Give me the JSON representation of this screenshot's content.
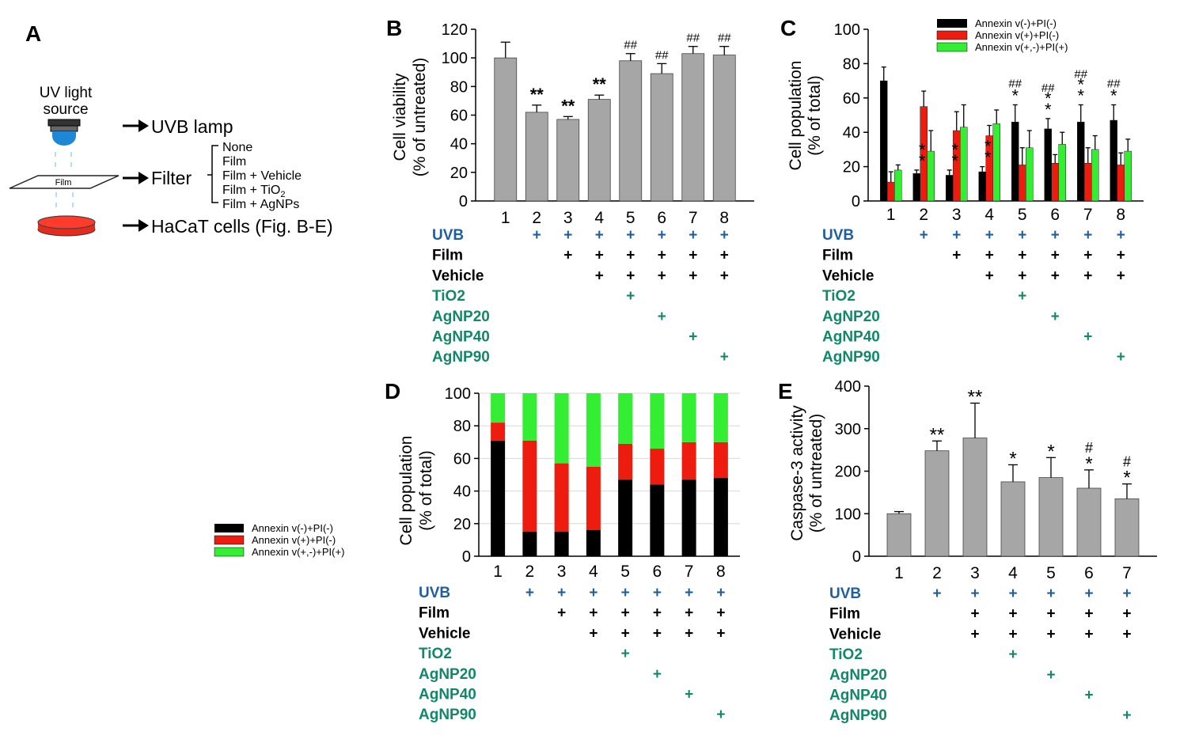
{
  "colors": {
    "gray_bar": "#a6a6a6",
    "black": "#000000",
    "red": "#ee1c0f",
    "green": "#33ee33",
    "uvb_blue": "#1f5fa0",
    "teal": "#12876a",
    "lamp_blue": "#1e88d6"
  },
  "panel_a": {
    "letter": "A",
    "uv_source_line1": "UV light",
    "uv_source_line2": "source",
    "uvb_lamp": "UVB lamp",
    "filter": "Filter",
    "film_label": "Film",
    "filter_options": [
      "None",
      "Film",
      "Film + Vehicle",
      "Film + TiO",
      "Film + AgNPs"
    ],
    "tio2_subscript": "2",
    "cells": "HaCaT cells (Fig. B-E)"
  },
  "legend_left": [
    "Annexin v(-)+PI(-)",
    "Annexin v(+)+PI(-)",
    "Annexin v(+,-)+PI(+)"
  ],
  "condition_table": {
    "row_labels": [
      "UVB",
      "Film",
      "Vehicle",
      "TiO2",
      "AgNP20",
      "AgNP40",
      "AgNP90"
    ],
    "row_colors": [
      "uvb",
      "black",
      "black",
      "teal",
      "teal",
      "teal",
      "teal"
    ],
    "plus_sign": "+",
    "matrix_8": [
      [
        0,
        1,
        1,
        1,
        1,
        1,
        1,
        1
      ],
      [
        0,
        0,
        1,
        1,
        1,
        1,
        1,
        1
      ],
      [
        0,
        0,
        0,
        1,
        1,
        1,
        1,
        1
      ],
      [
        0,
        0,
        0,
        0,
        1,
        0,
        0,
        0
      ],
      [
        0,
        0,
        0,
        0,
        0,
        1,
        0,
        0
      ],
      [
        0,
        0,
        0,
        0,
        0,
        0,
        1,
        0
      ],
      [
        0,
        0,
        0,
        0,
        0,
        0,
        0,
        1
      ]
    ],
    "matrix_7": [
      [
        0,
        1,
        1,
        1,
        1,
        1,
        1
      ],
      [
        0,
        0,
        1,
        1,
        1,
        1,
        1
      ],
      [
        0,
        0,
        1,
        1,
        1,
        1,
        1
      ],
      [
        0,
        0,
        0,
        1,
        0,
        0,
        0
      ],
      [
        0,
        0,
        0,
        0,
        1,
        0,
        0
      ],
      [
        0,
        0,
        0,
        0,
        0,
        1,
        0
      ],
      [
        0,
        0,
        0,
        0,
        0,
        0,
        1
      ]
    ]
  },
  "chart_data": [
    {
      "panel": "B",
      "type": "bar",
      "ylabel_line1": "Cell viability",
      "ylabel_line2": "(% of untreated)",
      "categories": [
        "1",
        "2",
        "3",
        "4",
        "5",
        "6",
        "7",
        "8"
      ],
      "values": [
        100,
        62,
        57,
        71,
        98,
        89,
        103,
        102
      ],
      "errors": [
        11,
        5,
        2,
        3,
        5,
        7,
        5,
        6
      ],
      "annotations": [
        "",
        "**",
        "**",
        "**",
        "##",
        "##",
        "##",
        "##"
      ],
      "ylim": [
        0,
        120
      ],
      "yticks": [
        0,
        20,
        40,
        60,
        80,
        100,
        120
      ]
    },
    {
      "panel": "C",
      "type": "bar",
      "ylabel_line1": "Cell population",
      "ylabel_line2": "(% of total)",
      "categories": [
        "1",
        "2",
        "3",
        "4",
        "5",
        "6",
        "7",
        "8"
      ],
      "series": [
        {
          "name": "Annexin v(-)+PI(-)",
          "color": "black",
          "values": [
            70,
            16,
            15,
            17,
            46,
            42,
            46,
            47
          ],
          "errors": [
            8,
            2,
            3,
            3,
            10,
            6,
            10,
            9
          ]
        },
        {
          "name": "Annexin v(+)+PI(-)",
          "color": "red",
          "values": [
            11,
            55,
            41,
            38,
            21,
            22,
            22,
            21
          ],
          "errors": [
            6,
            9,
            11,
            6,
            10,
            5,
            9,
            7
          ]
        },
        {
          "name": "Annexin v(+,-)+PI(+)",
          "color": "green",
          "values": [
            18,
            29,
            43,
            45,
            31,
            33,
            30,
            29
          ],
          "errors": [
            3,
            12,
            13,
            8,
            10,
            7,
            8,
            7
          ]
        }
      ],
      "annotations_sig": [
        "",
        "**",
        "**",
        "**",
        "*",
        "**",
        "**",
        "*"
      ],
      "annotations_hash": [
        "",
        "",
        "",
        "",
        "##",
        "##",
        "##",
        "##"
      ],
      "ylim": [
        0,
        100
      ],
      "yticks": [
        0,
        20,
        40,
        60,
        80,
        100
      ]
    },
    {
      "panel": "D",
      "type": "bar",
      "stacked": true,
      "ylabel_line1": "Cell population",
      "ylabel_line2": "(% of total)",
      "categories": [
        "1",
        "2",
        "3",
        "4",
        "5",
        "6",
        "7",
        "8"
      ],
      "series": [
        {
          "name": "Annexin v(-)+PI(-)",
          "color": "black",
          "values": [
            71,
            15,
            15,
            16,
            47,
            44,
            47,
            48
          ]
        },
        {
          "name": "Annexin v(+)+PI(-)",
          "color": "red",
          "values": [
            11,
            56,
            42,
            39,
            22,
            22,
            23,
            22
          ]
        },
        {
          "name": "Annexin v(+,-)+PI(+)",
          "color": "green",
          "values": [
            18,
            29,
            43,
            45,
            31,
            34,
            30,
            30
          ]
        }
      ],
      "ylim": [
        0,
        100
      ],
      "yticks": [
        0,
        20,
        40,
        60,
        80,
        100
      ]
    },
    {
      "panel": "E",
      "type": "bar",
      "ylabel_line1": "Caspase-3 activity",
      "ylabel_line2": "(% of untreated)",
      "categories": [
        "1",
        "2",
        "3",
        "4",
        "5",
        "6",
        "7"
      ],
      "values": [
        100,
        248,
        278,
        175,
        185,
        160,
        135
      ],
      "errors": [
        5,
        23,
        82,
        40,
        47,
        43,
        35
      ],
      "annotations_sig": [
        "",
        "**",
        "**",
        "*",
        "*",
        "*",
        "*"
      ],
      "annotations_hash": [
        "",
        "",
        "",
        "",
        "",
        "#",
        "#"
      ],
      "ylim": [
        0,
        400
      ],
      "yticks": [
        0,
        100,
        200,
        300,
        400
      ]
    }
  ]
}
